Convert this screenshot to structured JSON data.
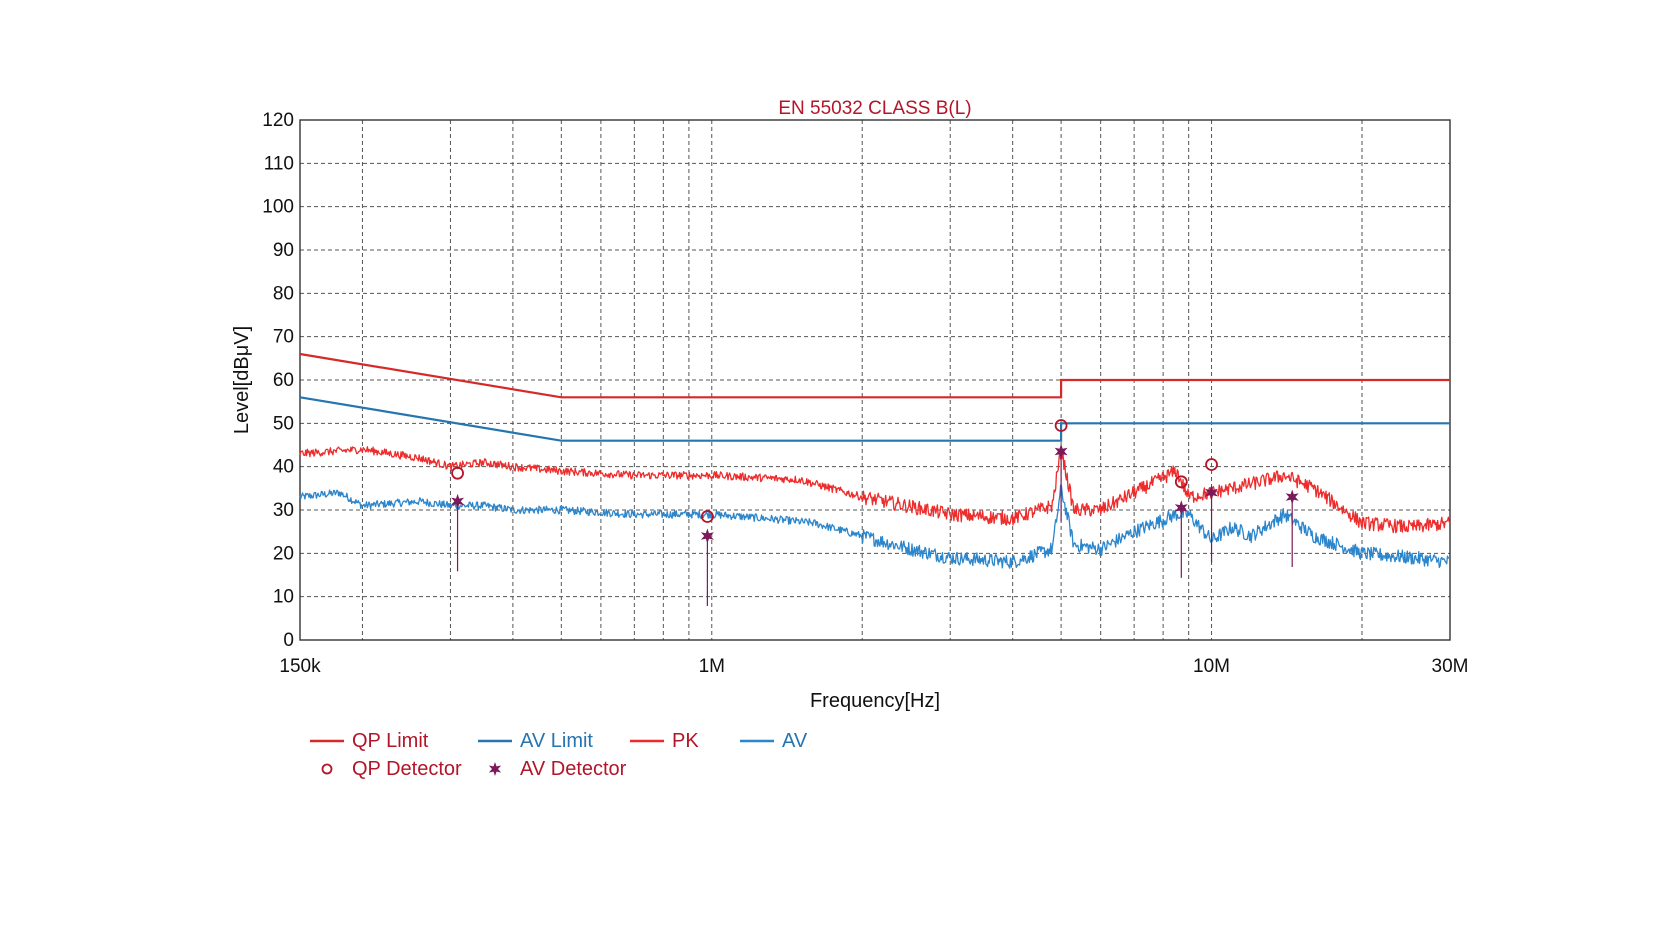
{
  "chart_data": {
    "type": "line",
    "title": "EN 55032 CLASS B(L)",
    "xlabel": "Frequency[Hz]",
    "ylabel": "Level[dBμV]",
    "x_scale": "log",
    "xlim": [
      150000,
      30000000
    ],
    "ylim": [
      0,
      120
    ],
    "grid": true,
    "y_ticks": [
      0,
      10,
      20,
      30,
      40,
      50,
      60,
      70,
      80,
      90,
      100,
      110,
      120
    ],
    "x_tick_labels": [
      {
        "value": 150000,
        "label": "150k"
      },
      {
        "value": 1000000,
        "label": "1M"
      },
      {
        "value": 10000000,
        "label": "10M"
      },
      {
        "value": 30000000,
        "label": "30M"
      }
    ],
    "colors": {
      "qp_limit": "#d42a2a",
      "av_limit": "#2475b0",
      "pk": "#ee2c2c",
      "av": "#2c86cc",
      "qp_detector": "#b3152a",
      "av_detector": "#7a1a5a"
    },
    "series": [
      {
        "name": "QP Limit",
        "x": [
          150000,
          500000,
          5000000,
          5000000,
          30000000
        ],
        "values": [
          66,
          56,
          56,
          60,
          60
        ]
      },
      {
        "name": "AV Limit",
        "x": [
          150000,
          500000,
          5000000,
          5000000,
          30000000
        ],
        "values": [
          56,
          46,
          46,
          50,
          50
        ]
      },
      {
        "name": "PK",
        "x": [
          150000,
          200000,
          260000,
          300000,
          350000,
          400000,
          500000,
          700000,
          1000000,
          1500000,
          2000000,
          3000000,
          4000000,
          4800000,
          5000000,
          5300000,
          6000000,
          7000000,
          8500000,
          9000000,
          10000000,
          12000000,
          14000000,
          16000000,
          20000000,
          25000000,
          30000000
        ],
        "values": [
          43,
          44,
          42,
          40,
          41,
          40,
          39,
          38,
          38,
          37,
          33,
          29,
          28,
          31,
          44,
          30,
          30,
          34,
          39,
          33,
          34,
          36,
          38,
          35,
          27,
          26,
          27
        ]
      },
      {
        "name": "AV",
        "x": [
          150000,
          180000,
          200000,
          260000,
          300000,
          350000,
          400000,
          500000,
          700000,
          1000000,
          1300000,
          1600000,
          2000000,
          2500000,
          3000000,
          4000000,
          4800000,
          5000000,
          5300000,
          6000000,
          7000000,
          8500000,
          9000000,
          10000000,
          11000000,
          12000000,
          14000000,
          16000000,
          20000000,
          25000000,
          30000000
        ],
        "values": [
          33,
          34,
          31,
          32,
          31,
          31,
          30,
          30,
          29,
          29,
          28,
          27,
          24,
          21,
          19,
          18,
          21,
          35,
          22,
          21,
          25,
          29,
          29,
          23,
          26,
          24,
          29,
          24,
          20,
          19,
          18
        ]
      }
    ],
    "detectors": [
      {
        "marker": "QP Detector",
        "x": 310000,
        "value": 38.5
      },
      {
        "marker": "QP Detector",
        "x": 980000,
        "value": 28.5
      },
      {
        "marker": "QP Detector",
        "x": 5000000,
        "value": 49.5
      },
      {
        "marker": "QP Detector",
        "x": 8700000,
        "value": 36.5
      },
      {
        "marker": "QP Detector",
        "x": 10000000,
        "value": 40.5
      },
      {
        "marker": "AV Detector",
        "x": 310000,
        "value": 32
      },
      {
        "marker": "AV Detector",
        "x": 980000,
        "value": 24
      },
      {
        "marker": "AV Detector",
        "x": 5000000,
        "value": 43.5
      },
      {
        "marker": "AV Detector",
        "x": 8700000,
        "value": 30.5
      },
      {
        "marker": "AV Detector",
        "x": 10000000,
        "value": 34
      },
      {
        "marker": "AV Detector",
        "x": 14500000,
        "value": 33
      }
    ],
    "legend": {
      "placement": "bottom-left",
      "items": [
        {
          "label": "QP Limit",
          "kind": "line",
          "color": "#d42a2a",
          "text_color": "#b3152a"
        },
        {
          "label": "AV Limit",
          "kind": "line",
          "color": "#2475b0",
          "text_color": "#2475b0"
        },
        {
          "label": "PK",
          "kind": "line",
          "color": "#ee2c2c",
          "text_color": "#b3152a"
        },
        {
          "label": "AV",
          "kind": "line",
          "color": "#2c86cc",
          "text_color": "#2475b0"
        },
        {
          "label": "QP Detector",
          "kind": "circle",
          "color": "#b3152a",
          "text_color": "#b3152a"
        },
        {
          "label": "AV Detector",
          "kind": "star",
          "color": "#7a1a5a",
          "text_color": "#b3152a"
        }
      ]
    }
  }
}
